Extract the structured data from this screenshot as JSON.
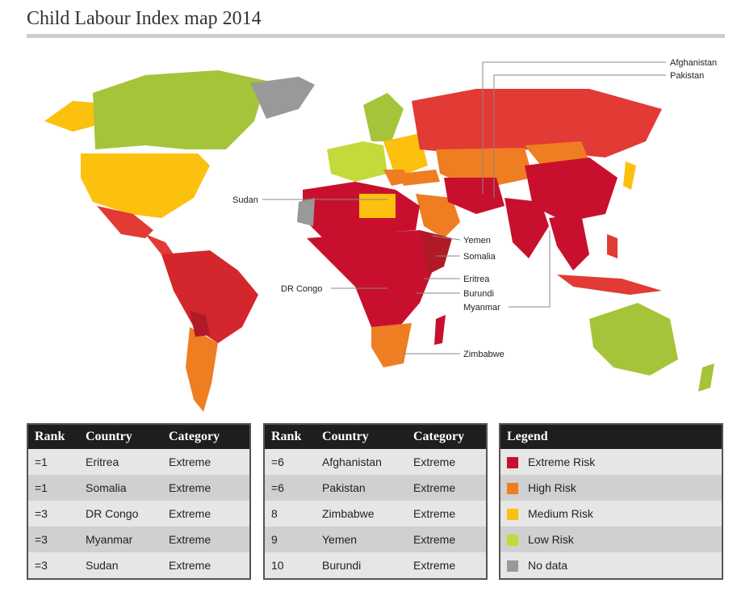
{
  "title": "Child Labour Index map 2014",
  "callouts": [
    "Afghanistan",
    "Pakistan",
    "Sudan",
    "Yemen",
    "Somalia",
    "Eritrea",
    "DR Congo",
    "Burundi",
    "Myanmar",
    "Zimbabwe"
  ],
  "table_headers": {
    "rank": "Rank",
    "country": "Country",
    "category": "Category"
  },
  "table_left": [
    {
      "rank": "=1",
      "country": "Eritrea",
      "category": "Extreme"
    },
    {
      "rank": "=1",
      "country": "Somalia",
      "category": "Extreme"
    },
    {
      "rank": "=3",
      "country": "DR Congo",
      "category": "Extreme"
    },
    {
      "rank": "=3",
      "country": "Myanmar",
      "category": "Extreme"
    },
    {
      "rank": "=3",
      "country": "Sudan",
      "category": "Extreme"
    }
  ],
  "table_right": [
    {
      "rank": "=6",
      "country": "Afghanistan",
      "category": "Extreme"
    },
    {
      "rank": "=6",
      "country": "Pakistan",
      "category": "Extreme"
    },
    {
      "rank": "8",
      "country": "Zimbabwe",
      "category": "Extreme"
    },
    {
      "rank": "9",
      "country": "Yemen",
      "category": "Extreme"
    },
    {
      "rank": "10",
      "country": "Burundi",
      "category": "Extreme"
    }
  ],
  "legend": {
    "title": "Legend",
    "items": [
      {
        "label": "Extreme Risk",
        "color": "#c8102e"
      },
      {
        "label": "High Risk",
        "color": "#ef7d22"
      },
      {
        "label": "Medium Risk",
        "color": "#fcc00f"
      },
      {
        "label": "Low Risk",
        "color": "#c5d93a"
      },
      {
        "label": "No data",
        "color": "#999999"
      }
    ]
  }
}
